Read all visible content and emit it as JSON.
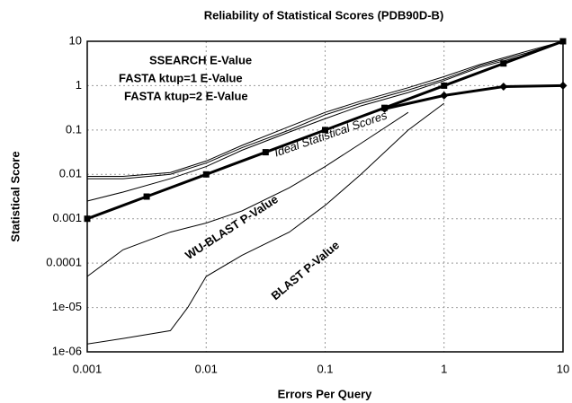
{
  "chart_data": {
    "type": "line",
    "title": "Reliability of Statistical Scores (PDB90D-B)",
    "x_label": "Errors Per Query",
    "y_label": "Statistical Score",
    "log_x": true,
    "log_y": true,
    "grid": true,
    "xlim": [
      0.001,
      10
    ],
    "xticks": [
      0.001,
      0.01,
      0.1,
      1,
      10
    ],
    "ylim": [
      1e-06,
      10
    ],
    "yticks": [
      {
        "value": 1e-06,
        "label": "1e-06"
      },
      {
        "value": 1e-05,
        "label": "1e-05"
      },
      0.0001,
      0.001,
      0.01,
      0.1,
      1,
      10
    ],
    "series": [
      {
        "name": "SSEARCH E-Value",
        "color": "#000000",
        "width": 1,
        "x": [
          0.001,
          0.002,
          0.005,
          0.01,
          0.02,
          0.05,
          0.1,
          0.2,
          0.5,
          1,
          2,
          5,
          10
        ],
        "values": [
          0.009,
          0.009,
          0.011,
          0.02,
          0.045,
          0.12,
          0.25,
          0.45,
          0.9,
          1.6,
          3,
          6,
          10
        ]
      },
      {
        "name": "FASTA ktup=1 E-Value",
        "color": "#000000",
        "width": 1,
        "x": [
          0.001,
          0.002,
          0.005,
          0.01,
          0.02,
          0.05,
          0.1,
          0.2,
          0.5,
          1,
          2,
          5,
          10
        ],
        "values": [
          0.008,
          0.008,
          0.01,
          0.018,
          0.04,
          0.1,
          0.22,
          0.4,
          0.8,
          1.4,
          2.8,
          5.5,
          10
        ]
      },
      {
        "name": "FASTA ktup=2 E-Value",
        "color": "#000000",
        "width": 1,
        "x": [
          0.001,
          0.002,
          0.005,
          0.01,
          0.02,
          0.05,
          0.1,
          0.2,
          0.5,
          1,
          2,
          5,
          10
        ],
        "values": [
          0.0025,
          0.004,
          0.008,
          0.015,
          0.035,
          0.09,
          0.18,
          0.35,
          0.7,
          1.3,
          2.6,
          5,
          10
        ]
      },
      {
        "name": "WU-BLAST P-Value",
        "color": "#000000",
        "width": 1,
        "x": [
          0.001,
          0.002,
          0.005,
          0.01,
          0.02,
          0.05,
          0.1,
          0.2,
          0.5
        ],
        "values": [
          5e-05,
          0.0002,
          0.0005,
          0.0008,
          0.0015,
          0.005,
          0.015,
          0.05,
          0.25
        ]
      },
      {
        "name": "BLAST P-Value",
        "color": "#000000",
        "width": 1,
        "x": [
          0.001,
          0.002,
          0.005,
          0.007,
          0.01,
          0.02,
          0.05,
          0.1,
          0.2,
          0.5,
          1
        ],
        "values": [
          1.5e-06,
          2e-06,
          3e-06,
          1e-05,
          5e-05,
          0.00015,
          0.0005,
          0.002,
          0.01,
          0.1,
          0.4
        ]
      },
      {
        "color": "#000000",
        "width": 3,
        "marker": "diamond",
        "x": [
          0.316,
          1,
          3.16,
          10
        ],
        "values": [
          0.3,
          0.6,
          0.95,
          1
        ]
      },
      {
        "name": "Ideal Statistical Scores",
        "color": "#000000",
        "width": 3,
        "marker": "square",
        "x": [
          0.001,
          0.00316,
          0.01,
          0.0316,
          0.1,
          0.316,
          1,
          3.16,
          10
        ],
        "values": [
          0.001,
          0.00316,
          0.01,
          0.0316,
          0.1,
          0.316,
          1,
          3.16,
          10
        ]
      }
    ],
    "annotations": [
      {
        "text": "SSEARCH E-Value"
      },
      {
        "text": "FASTA ktup=1 E-Value"
      },
      {
        "text": "FASTA ktup=2 E-Value"
      },
      {
        "text": "Ideal Statistical Scores"
      },
      {
        "text": "WU-BLAST P-Value"
      },
      {
        "text": "BLAST P-Value"
      }
    ]
  }
}
